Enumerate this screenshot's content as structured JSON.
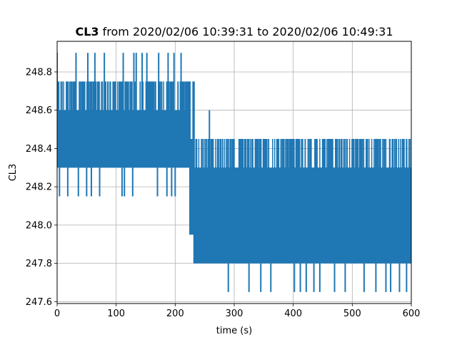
{
  "chart_data": {
    "type": "line",
    "title_bold": "CL3",
    "title_rest": " from 2020/02/06 10:39:31 to 2020/02/06 10:49:31",
    "xlabel": "time (s)",
    "ylabel": "CL3",
    "xlim": [
      0,
      600
    ],
    "ylim": [
      247.59,
      248.96
    ],
    "xticks": [
      0,
      100,
      200,
      300,
      400,
      500,
      600
    ],
    "xtick_labels": [
      "0",
      "100",
      "200",
      "300",
      "400",
      "500",
      "600"
    ],
    "yticks": [
      247.6,
      247.8,
      248.0,
      248.2,
      248.4,
      248.6,
      248.8
    ],
    "ytick_labels": [
      "247.6",
      "247.8",
      "248.0",
      "248.2",
      "248.4",
      "248.6",
      "248.8"
    ],
    "grid": true,
    "line_color": "#1f77b4",
    "series": [
      {
        "segments": [
          {
            "x_start": 0,
            "x_end": 225,
            "band_low": 248.3,
            "band_high": 248.75,
            "dense_low": 248.3,
            "dense_high": 248.6,
            "spikes_up": [
              0,
              32,
              52,
              64,
              80,
              112,
              130,
              134,
              144,
              152,
              172,
              188,
              198,
              210
            ],
            "spike_up_value": 248.9,
            "spikes_down": [
              4,
              18,
              36,
              50,
              58,
              72,
              110,
              114,
              128,
              170,
              186,
              194,
              200
            ],
            "spike_down_value": 248.15
          },
          {
            "x_start": 225,
            "x_end": 232,
            "band_low": 247.95,
            "band_high": 248.75,
            "dense_low": 247.95,
            "dense_high": 248.45,
            "spikes_up": [],
            "spike_up_value": 248.9,
            "spikes_down": [],
            "spike_down_value": 247.95
          },
          {
            "x_start": 232,
            "x_end": 600,
            "band_low": 247.8,
            "band_high": 248.45,
            "dense_low": 247.8,
            "dense_high": 248.3,
            "spikes_up": [
              258
            ],
            "spike_up_value": 248.6,
            "spikes_down": [
              290,
              325,
              345,
              362,
              402,
              412,
              422,
              435,
              445,
              470,
              488,
              520,
              540,
              557,
              565,
              580,
              592
            ],
            "spike_down_value": 247.65
          }
        ]
      }
    ]
  }
}
